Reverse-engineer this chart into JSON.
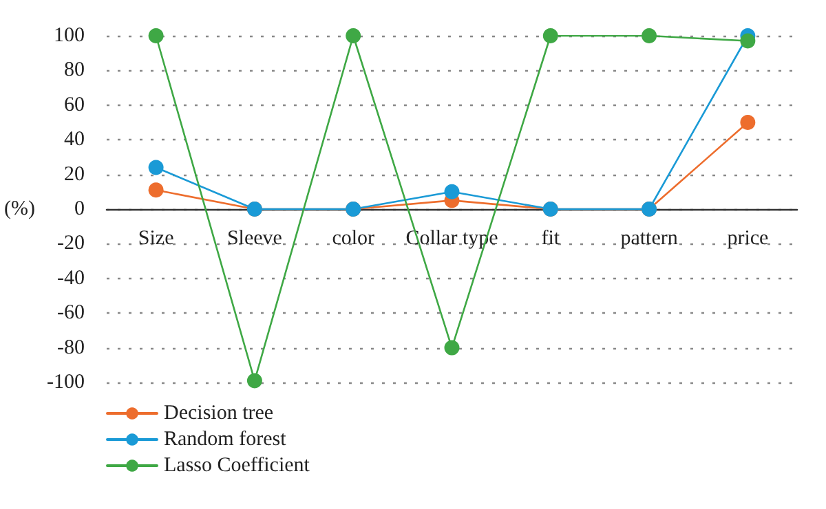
{
  "chart_data": {
    "type": "line",
    "ylabel": "(%)",
    "categories": [
      "Size",
      "Sleeve",
      "color",
      "Collar type",
      "fit",
      "pattern",
      "price"
    ],
    "series": [
      {
        "name": "Decision tree",
        "color": "#ed6d2d",
        "values": [
          11,
          0,
          0,
          5,
          0,
          0,
          50
        ]
      },
      {
        "name": "Random forest",
        "color": "#1a9ad6",
        "values": [
          24,
          0,
          0,
          10,
          0,
          0,
          100
        ]
      },
      {
        "name": "Lasso Coefficient",
        "color": "#3fa845",
        "values": [
          100,
          -99,
          100,
          -80,
          100,
          100,
          97
        ]
      }
    ],
    "ylim": [
      -100,
      100
    ],
    "yticks": [
      -100,
      -80,
      -60,
      -40,
      -20,
      0,
      20,
      40,
      60,
      80,
      100
    ],
    "grid": "y",
    "legend": "bottom left",
    "marker": "circle",
    "line_style": "solid"
  }
}
